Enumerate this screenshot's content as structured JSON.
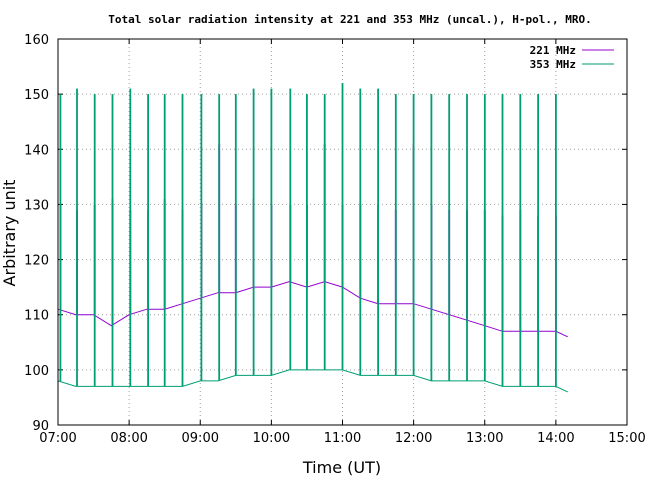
{
  "chart_data": {
    "type": "line",
    "title": "Total solar radiation intensity at 221 and 353 MHz (uncal.), H-pol., MRO.",
    "xlabel": "Time (UT)",
    "ylabel": "Arbitrary unit",
    "xlim": [
      "07:00",
      "15:00"
    ],
    "ylim": [
      90,
      160
    ],
    "x_ticks": [
      "07:00",
      "08:00",
      "09:00",
      "10:00",
      "11:00",
      "12:00",
      "13:00",
      "14:00",
      "15:00"
    ],
    "y_ticks": [
      90,
      100,
      110,
      120,
      130,
      140,
      150,
      160
    ],
    "grid": true,
    "legend_position": "top-right",
    "series": [
      {
        "name": "221 MHz",
        "color": "#9400d3",
        "baseline": [
          [
            "07:00",
            111
          ],
          [
            "07:15",
            110
          ],
          [
            "07:30",
            110
          ],
          [
            "07:45",
            108
          ],
          [
            "08:00",
            110
          ],
          [
            "08:15",
            111
          ],
          [
            "08:30",
            111
          ],
          [
            "08:45",
            112
          ],
          [
            "09:00",
            113
          ],
          [
            "09:15",
            114
          ],
          [
            "09:30",
            114
          ],
          [
            "09:45",
            115
          ],
          [
            "10:00",
            115
          ],
          [
            "10:15",
            116
          ],
          [
            "10:30",
            115
          ],
          [
            "10:45",
            116
          ],
          [
            "11:00",
            115
          ],
          [
            "11:15",
            113
          ],
          [
            "11:30",
            112
          ],
          [
            "11:45",
            112
          ],
          [
            "12:00",
            112
          ],
          [
            "12:15",
            111
          ],
          [
            "12:30",
            110
          ],
          [
            "12:45",
            109
          ],
          [
            "13:00",
            108
          ],
          [
            "13:15",
            107
          ],
          [
            "13:30",
            107
          ],
          [
            "13:45",
            107
          ],
          [
            "14:00",
            107
          ],
          [
            "14:10",
            106
          ]
        ],
        "spikes": [
          [
            "07:02",
            130
          ],
          [
            "07:16",
            129
          ],
          [
            "07:31",
            130
          ],
          [
            "07:46",
            131
          ],
          [
            "08:01",
            129
          ],
          [
            "08:16",
            129
          ],
          [
            "08:30",
            131
          ],
          [
            "08:45",
            129
          ],
          [
            "09:01",
            130
          ],
          [
            "09:16",
            141
          ],
          [
            "09:30",
            130
          ],
          [
            "09:45",
            131
          ],
          [
            "10:00",
            130
          ],
          [
            "10:16",
            130
          ],
          [
            "10:30",
            130
          ],
          [
            "10:45",
            141
          ],
          [
            "11:00",
            130
          ],
          [
            "11:15",
            130
          ],
          [
            "11:30",
            130
          ],
          [
            "11:45",
            129
          ],
          [
            "12:00",
            141
          ],
          [
            "12:15",
            130
          ],
          [
            "12:30",
            129
          ],
          [
            "12:45",
            129
          ],
          [
            "13:00",
            129
          ],
          [
            "13:15",
            128
          ],
          [
            "13:30",
            129
          ],
          [
            "13:45",
            128
          ],
          [
            "14:00",
            128
          ]
        ]
      },
      {
        "name": "353 MHz",
        "color": "#009e73",
        "baseline": [
          [
            "07:00",
            98
          ],
          [
            "07:15",
            97
          ],
          [
            "07:30",
            97
          ],
          [
            "07:45",
            97
          ],
          [
            "08:00",
            97
          ],
          [
            "08:15",
            97
          ],
          [
            "08:30",
            97
          ],
          [
            "08:45",
            97
          ],
          [
            "09:00",
            98
          ],
          [
            "09:15",
            98
          ],
          [
            "09:30",
            99
          ],
          [
            "09:45",
            99
          ],
          [
            "10:00",
            99
          ],
          [
            "10:15",
            100
          ],
          [
            "10:30",
            100
          ],
          [
            "10:45",
            100
          ],
          [
            "11:00",
            100
          ],
          [
            "11:15",
            99
          ],
          [
            "11:30",
            99
          ],
          [
            "11:45",
            99
          ],
          [
            "12:00",
            99
          ],
          [
            "12:15",
            98
          ],
          [
            "12:30",
            98
          ],
          [
            "12:45",
            98
          ],
          [
            "13:00",
            98
          ],
          [
            "13:15",
            97
          ],
          [
            "13:30",
            97
          ],
          [
            "13:45",
            97
          ],
          [
            "14:00",
            97
          ],
          [
            "14:10",
            96
          ]
        ],
        "spikes": [
          [
            "07:02",
            150
          ],
          [
            "07:16",
            151
          ],
          [
            "07:31",
            150
          ],
          [
            "07:46",
            150
          ],
          [
            "08:01",
            151
          ],
          [
            "08:16",
            150
          ],
          [
            "08:30",
            150
          ],
          [
            "08:45",
            150
          ],
          [
            "09:01",
            150
          ],
          [
            "09:16",
            150
          ],
          [
            "09:30",
            150
          ],
          [
            "09:45",
            151
          ],
          [
            "10:00",
            151
          ],
          [
            "10:16",
            151
          ],
          [
            "10:30",
            150
          ],
          [
            "10:45",
            150
          ],
          [
            "11:00",
            152
          ],
          [
            "11:15",
            151
          ],
          [
            "11:30",
            151
          ],
          [
            "11:45",
            150
          ],
          [
            "12:00",
            150
          ],
          [
            "12:15",
            150
          ],
          [
            "12:30",
            150
          ],
          [
            "12:45",
            150
          ],
          [
            "13:00",
            150
          ],
          [
            "13:15",
            150
          ],
          [
            "13:30",
            150
          ],
          [
            "13:45",
            150
          ],
          [
            "14:00",
            150
          ]
        ]
      }
    ]
  }
}
